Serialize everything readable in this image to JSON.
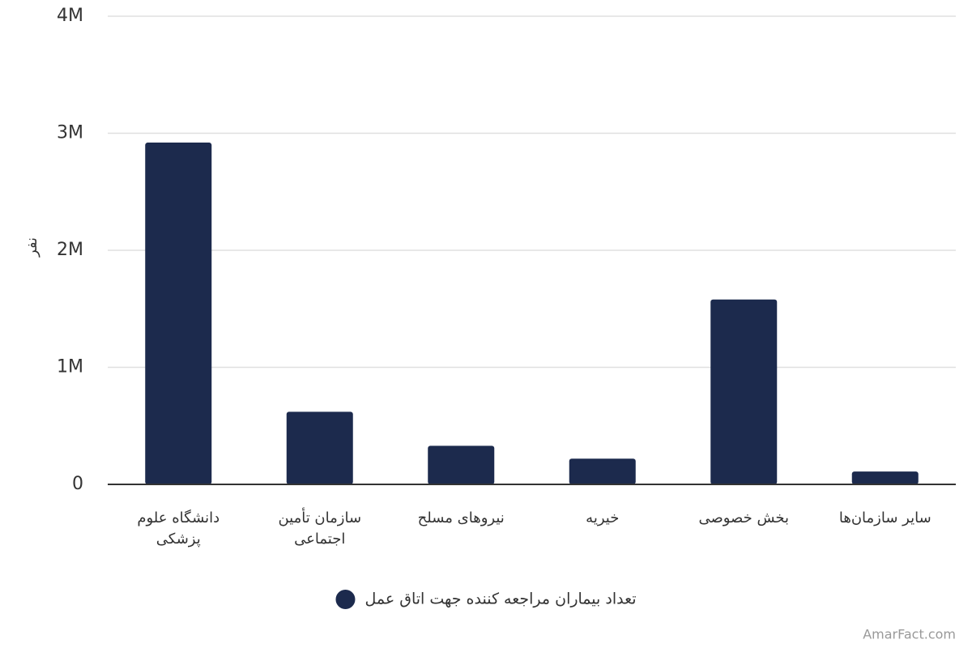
{
  "chart_data": {
    "type": "bar",
    "y_label": "نفر",
    "categories": [
      "دانشگاه علوم پزشکی",
      "سازمان تأمین اجتماعی",
      "نیروهای مسلح",
      "خیریه",
      "بخش خصوصی",
      "سایر سازمان‌ها"
    ],
    "series": [
      {
        "name": "تعداد بیماران مراجعه کننده جهت اتاق عمل",
        "color": "#1c2a4d",
        "values": [
          2920000,
          620000,
          330000,
          220000,
          1580000,
          110000
        ]
      }
    ],
    "ylim": [
      0,
      4000000
    ],
    "yticks": [
      0,
      {
        "value": 1000000,
        "label": "1M"
      },
      {
        "value": 2000000,
        "label": "2M"
      },
      {
        "value": 3000000,
        "label": "3M"
      },
      {
        "value": 4000000,
        "label": "4M"
      }
    ],
    "grid": true,
    "legend": "bottom",
    "watermark": "AmarFact.com"
  }
}
